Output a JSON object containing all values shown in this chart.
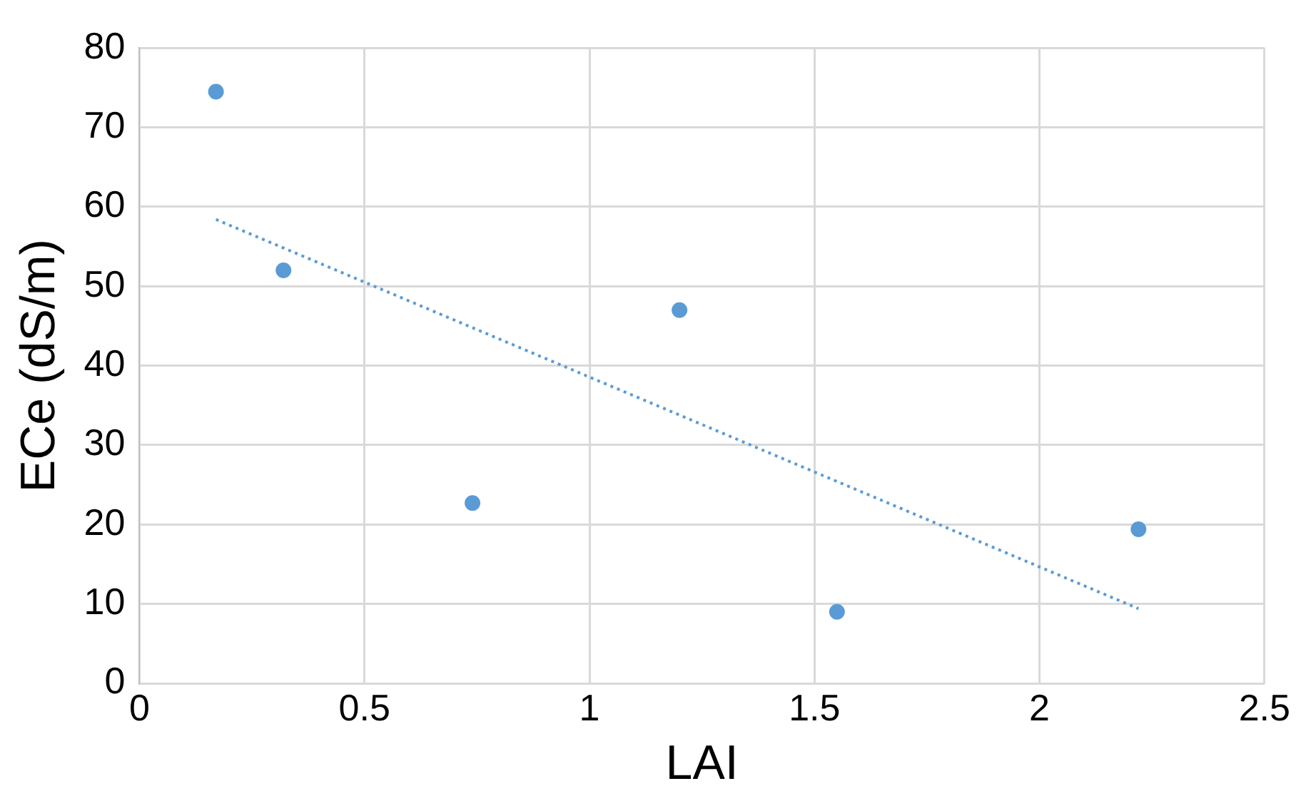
{
  "chart_data": {
    "type": "scatter",
    "xlabel": "LAI",
    "ylabel": "ECe (dS/m)",
    "marker": "circle",
    "grid": true,
    "xlim": [
      0,
      2.5
    ],
    "xticks": [
      0,
      0.5,
      1,
      1.5,
      2,
      2.5
    ],
    "ylim": [
      0,
      80
    ],
    "yticks": [
      0,
      10,
      20,
      30,
      40,
      50,
      60,
      70,
      80
    ],
    "series": [
      {
        "color": "#5b9bd5",
        "x": [
          0.17,
          0.32,
          0.74,
          1.2,
          1.55,
          2.22
        ],
        "values": [
          74.5,
          52,
          22.7,
          47,
          9,
          19.4
        ]
      },
      {
        "type": "line",
        "color": "#5b9bd5",
        "line_style": "dotted",
        "marker": "none",
        "x": [
          0.17,
          2.22
        ],
        "values": [
          58.4,
          9.4
        ]
      }
    ]
  }
}
